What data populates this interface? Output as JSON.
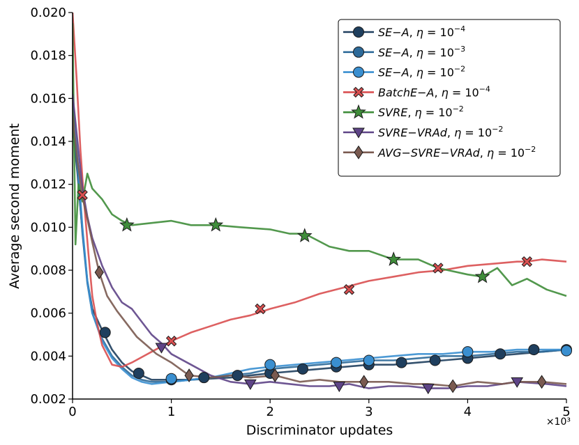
{
  "chart_data": {
    "type": "line",
    "xlabel": "Discriminator updates",
    "ylabel": "Average second moment",
    "x_multiplier_label": "×10³",
    "xlim": [
      0,
      5
    ],
    "ylim": [
      0.002,
      0.02
    ],
    "x_ticks": [
      0,
      1,
      2,
      3,
      4,
      5
    ],
    "x_tick_labels": [
      "0",
      "1",
      "2",
      "3",
      "4",
      "5"
    ],
    "y_ticks": [
      0.002,
      0.004,
      0.006,
      0.008,
      0.01,
      0.012,
      0.014,
      0.016,
      0.018,
      0.02
    ],
    "y_tick_labels": [
      "0.002",
      "0.004",
      "0.006",
      "0.008",
      "0.010",
      "0.012",
      "0.014",
      "0.016",
      "0.018",
      "0.020"
    ],
    "legend_position": "top-right",
    "series": [
      {
        "key": "se_a_1e4",
        "name_method": "SE−A",
        "name_eta_exp": "−4",
        "color": "#1f3f5e",
        "marker": "circle",
        "x": [
          0,
          0.05,
          0.1,
          0.15,
          0.2,
          0.3,
          0.4,
          0.5,
          0.6,
          0.7,
          0.8,
          1.0,
          1.2,
          1.4,
          1.6,
          1.8,
          2.0,
          2.25,
          2.5,
          2.75,
          3.0,
          3.25,
          3.5,
          3.75,
          4.0,
          4.25,
          4.5,
          4.75,
          5.0
        ],
        "y": [
          0.0148,
          0.0125,
          0.0098,
          0.0075,
          0.0062,
          0.0052,
          0.0043,
          0.0037,
          0.0033,
          0.0031,
          0.0029,
          0.0029,
          0.0029,
          0.00295,
          0.003,
          0.0031,
          0.0032,
          0.0033,
          0.0034,
          0.0035,
          0.0036,
          0.0036,
          0.0037,
          0.0038,
          0.0039,
          0.004,
          0.0041,
          0.0042,
          0.0043
        ],
        "marker_x": [
          0.33,
          0.67,
          1.0,
          1.33,
          1.67,
          2.0,
          2.33,
          2.67,
          3.0,
          3.33,
          3.67,
          4.0,
          4.33,
          4.67,
          5.0
        ],
        "marker_y": [
          0.0051,
          0.0032,
          0.0029,
          0.003,
          0.0031,
          0.0032,
          0.0034,
          0.0035,
          0.0036,
          0.0037,
          0.0038,
          0.0039,
          0.0041,
          0.0043,
          0.0043
        ]
      },
      {
        "key": "se_a_1e3",
        "name_method": "SE−A",
        "name_eta_exp": "−3",
        "color": "#2d6a99",
        "marker": "circle",
        "x": [
          0,
          0.05,
          0.1,
          0.15,
          0.2,
          0.3,
          0.4,
          0.5,
          0.6,
          0.7,
          0.8,
          1.0,
          1.2,
          1.4,
          1.6,
          1.8,
          2.0,
          2.25,
          2.5,
          2.75,
          3.0,
          3.25,
          3.5,
          3.75,
          4.0,
          4.25,
          4.5,
          4.75,
          5.0
        ],
        "y": [
          0.0155,
          0.0128,
          0.0097,
          0.0074,
          0.006,
          0.0048,
          0.004,
          0.0035,
          0.0031,
          0.0029,
          0.0028,
          0.0028,
          0.0029,
          0.003,
          0.0031,
          0.0032,
          0.0034,
          0.0035,
          0.0036,
          0.0037,
          0.0038,
          0.0038,
          0.0039,
          0.004,
          0.004,
          0.0041,
          0.0042,
          0.0042,
          0.0043
        ],
        "marker_x": [],
        "marker_y": []
      },
      {
        "key": "se_a_1e2",
        "name_method": "SE−A",
        "name_eta_exp": "−2",
        "color": "#3a8fd0",
        "marker": "circle",
        "x": [
          0,
          0.05,
          0.1,
          0.15,
          0.2,
          0.3,
          0.4,
          0.5,
          0.6,
          0.7,
          0.8,
          1.0,
          1.2,
          1.4,
          1.6,
          1.8,
          2.0,
          2.25,
          2.5,
          2.75,
          3.0,
          3.25,
          3.5,
          3.75,
          4.0,
          4.25,
          4.5,
          4.75,
          5.0
        ],
        "y": [
          0.016,
          0.0132,
          0.01,
          0.0075,
          0.006,
          0.0047,
          0.0039,
          0.0034,
          0.003,
          0.0028,
          0.0027,
          0.0028,
          0.0029,
          0.003,
          0.0032,
          0.0034,
          0.0035,
          0.0036,
          0.0037,
          0.0038,
          0.0039,
          0.004,
          0.0041,
          0.0041,
          0.0042,
          0.0042,
          0.0043,
          0.0043,
          0.0043
        ],
        "marker_x": [
          1.0,
          2.0,
          2.67,
          3.0,
          4.0,
          5.0
        ],
        "marker_y": [
          0.00295,
          0.0036,
          0.0037,
          0.0038,
          0.0042,
          0.00425
        ]
      },
      {
        "key": "batche_a_1e4",
        "name_method": "BatchE−A",
        "name_eta_exp": "−4",
        "color": "#d94f50",
        "marker": "x",
        "x": [
          0,
          0.04,
          0.08,
          0.12,
          0.16,
          0.2,
          0.25,
          0.3,
          0.4,
          0.5,
          0.6,
          0.8,
          1.0,
          1.2,
          1.4,
          1.6,
          1.8,
          2.0,
          2.25,
          2.5,
          2.75,
          3.0,
          3.25,
          3.5,
          3.75,
          4.0,
          4.25,
          4.5,
          4.6,
          4.75,
          5.0
        ],
        "y": [
          0.02,
          0.017,
          0.0136,
          0.011,
          0.0088,
          0.0068,
          0.0055,
          0.0045,
          0.0036,
          0.0035,
          0.0037,
          0.0042,
          0.0047,
          0.0051,
          0.0054,
          0.0057,
          0.0059,
          0.0062,
          0.0065,
          0.0069,
          0.0072,
          0.0075,
          0.0077,
          0.0079,
          0.008,
          0.0082,
          0.0083,
          0.0084,
          0.0084,
          0.0085,
          0.0084
        ],
        "marker_x": [
          0.1,
          1.0,
          1.9,
          2.8,
          3.7,
          4.6
        ],
        "marker_y": [
          0.0115,
          0.0047,
          0.0062,
          0.0071,
          0.0081,
          0.0084
        ]
      },
      {
        "key": "svre_1e2",
        "name_method": "SVRE",
        "name_eta_exp": "−2",
        "color": "#3f8d3a",
        "marker": "star",
        "x": [
          0,
          0.03,
          0.06,
          0.1,
          0.15,
          0.2,
          0.3,
          0.4,
          0.5,
          0.6,
          0.8,
          1.0,
          1.2,
          1.45,
          1.7,
          2.0,
          2.2,
          2.35,
          2.6,
          2.8,
          3.0,
          3.25,
          3.5,
          3.7,
          4.0,
          4.15,
          4.3,
          4.45,
          4.6,
          4.8,
          5.0
        ],
        "y": [
          0.0195,
          0.0092,
          0.012,
          0.0112,
          0.0125,
          0.0118,
          0.0113,
          0.0106,
          0.0103,
          0.0101,
          0.0102,
          0.0103,
          0.0101,
          0.0101,
          0.01,
          0.0099,
          0.0097,
          0.0097,
          0.0091,
          0.0089,
          0.0089,
          0.0085,
          0.0085,
          0.0081,
          0.0078,
          0.0077,
          0.0081,
          0.0073,
          0.0076,
          0.0071,
          0.0068
        ],
        "marker_x": [
          0.55,
          1.45,
          2.35,
          3.25,
          4.15
        ],
        "marker_y": [
          0.0101,
          0.0101,
          0.0096,
          0.0085,
          0.0077
        ]
      },
      {
        "key": "svre_vrad_1e2",
        "name_method": "SVRE−VRAd",
        "name_eta_exp": "−2",
        "color": "#5e4487",
        "marker": "triangle-down",
        "x": [
          0,
          0.05,
          0.1,
          0.15,
          0.2,
          0.3,
          0.4,
          0.5,
          0.6,
          0.7,
          0.8,
          0.9,
          1.0,
          1.2,
          1.4,
          1.6,
          1.8,
          2.0,
          2.2,
          2.4,
          2.6,
          2.8,
          3.0,
          3.2,
          3.4,
          3.6,
          3.8,
          4.0,
          4.2,
          4.5,
          4.8,
          5.0
        ],
        "y": [
          0.0162,
          0.014,
          0.0118,
          0.0105,
          0.0095,
          0.0082,
          0.0072,
          0.0065,
          0.0062,
          0.0056,
          0.005,
          0.0046,
          0.0041,
          0.0036,
          0.0031,
          0.0028,
          0.0027,
          0.0028,
          0.0027,
          0.0026,
          0.0026,
          0.0027,
          0.0025,
          0.0026,
          0.0026,
          0.0025,
          0.0025,
          0.0026,
          0.0026,
          0.0028,
          0.0027,
          0.0026
        ],
        "marker_x": [
          0.9,
          1.8,
          2.7,
          3.6,
          4.5
        ],
        "marker_y": [
          0.0044,
          0.0027,
          0.0026,
          0.0025,
          0.0028
        ]
      },
      {
        "key": "avg_svre_vrad_1e2",
        "name_method": "AVG−SVRE−VRAd",
        "name_eta_exp": "−2",
        "color": "#7a5a50",
        "marker": "diamond",
        "x": [
          0,
          0.05,
          0.1,
          0.15,
          0.2,
          0.27,
          0.35,
          0.45,
          0.55,
          0.65,
          0.75,
          0.85,
          1.0,
          1.18,
          1.4,
          1.6,
          1.8,
          2.05,
          2.3,
          2.5,
          2.7,
          2.95,
          3.2,
          3.45,
          3.6,
          3.85,
          4.1,
          4.35,
          4.5,
          4.75,
          5.0
        ],
        "y": [
          0.0152,
          0.0131,
          0.0114,
          0.0104,
          0.0093,
          0.0079,
          0.0068,
          0.0061,
          0.0055,
          0.0049,
          0.0045,
          0.0041,
          0.0037,
          0.0031,
          0.003,
          0.0031,
          0.003,
          0.0031,
          0.0028,
          0.0029,
          0.0028,
          0.0028,
          0.0028,
          0.0027,
          0.0027,
          0.0026,
          0.0028,
          0.0027,
          0.0028,
          0.0028,
          0.0027
        ],
        "marker_x": [
          0.27,
          1.18,
          2.05,
          2.95,
          3.85,
          4.75
        ],
        "marker_y": [
          0.0079,
          0.0031,
          0.0031,
          0.0028,
          0.0026,
          0.0028
        ]
      }
    ]
  }
}
